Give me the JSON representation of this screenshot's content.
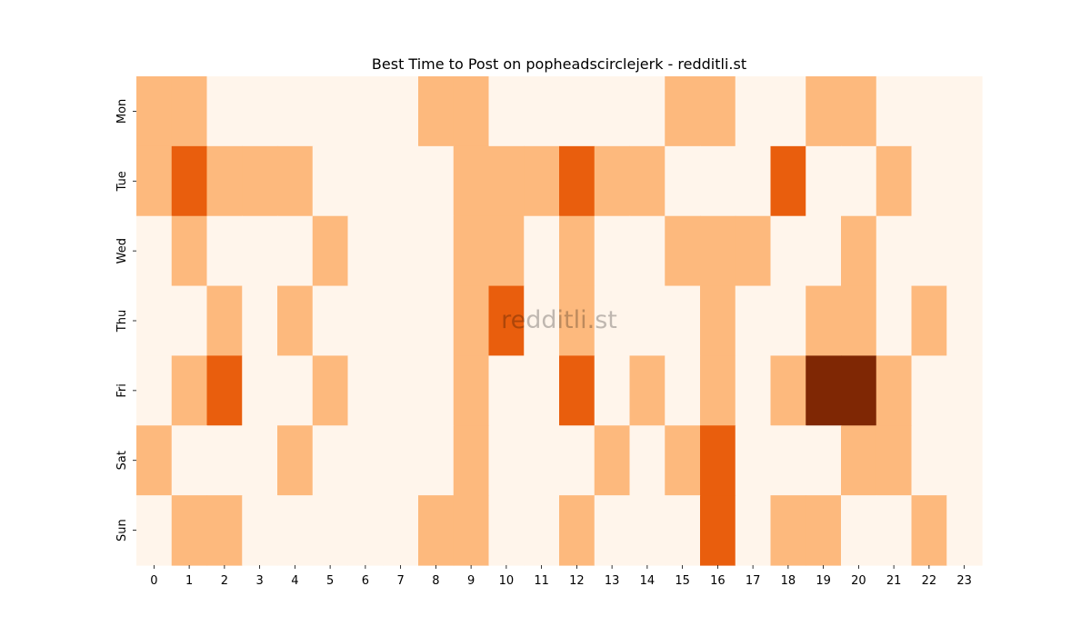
{
  "chart_data": {
    "type": "heatmap",
    "title": "Best Time to Post on popheadscirclejerk - redditli.st",
    "watermark": "redditli.st",
    "xlabel": "",
    "ylabel": "",
    "x_tick_labels": [
      "0",
      "1",
      "2",
      "3",
      "4",
      "5",
      "6",
      "7",
      "8",
      "9",
      "10",
      "11",
      "12",
      "13",
      "14",
      "15",
      "16",
      "17",
      "18",
      "19",
      "20",
      "21",
      "22",
      "23"
    ],
    "y_tick_labels": [
      "Mon",
      "Tue",
      "Wed",
      "Thu",
      "Fri",
      "Sat",
      "Sun"
    ],
    "colormap": "Oranges",
    "value_levels": [
      0,
      1,
      2,
      3
    ],
    "colors": {
      "level_0": "#fff5eb",
      "level_1": "#fdb97d",
      "level_2": "#e95e0d",
      "level_3": "#7f2704"
    },
    "grid": false,
    "legend": "none",
    "values": [
      [
        1,
        1,
        0,
        0,
        0,
        0,
        0,
        0,
        1,
        1,
        0,
        0,
        0,
        0,
        0,
        1,
        1,
        0,
        0,
        1,
        1,
        0,
        0,
        0
      ],
      [
        1,
        2,
        1,
        1,
        1,
        0,
        0,
        0,
        0,
        1,
        1,
        1,
        2,
        1,
        1,
        0,
        0,
        0,
        2,
        0,
        0,
        1,
        0,
        0
      ],
      [
        0,
        1,
        0,
        0,
        0,
        1,
        0,
        0,
        0,
        1,
        1,
        0,
        1,
        0,
        0,
        1,
        1,
        1,
        0,
        0,
        1,
        0,
        0,
        0
      ],
      [
        0,
        0,
        1,
        0,
        1,
        0,
        0,
        0,
        0,
        1,
        2,
        0,
        1,
        0,
        0,
        0,
        1,
        0,
        0,
        1,
        1,
        0,
        1,
        0
      ],
      [
        0,
        1,
        2,
        0,
        0,
        1,
        0,
        0,
        0,
        1,
        0,
        0,
        2,
        0,
        1,
        0,
        1,
        0,
        1,
        3,
        3,
        1,
        0,
        0
      ],
      [
        1,
        0,
        0,
        0,
        1,
        0,
        0,
        0,
        0,
        1,
        0,
        0,
        0,
        1,
        0,
        1,
        2,
        0,
        0,
        0,
        1,
        1,
        0,
        0
      ],
      [
        0,
        1,
        1,
        0,
        0,
        0,
        0,
        0,
        1,
        1,
        0,
        0,
        1,
        0,
        0,
        0,
        2,
        0,
        1,
        1,
        0,
        0,
        1,
        0
      ]
    ]
  }
}
